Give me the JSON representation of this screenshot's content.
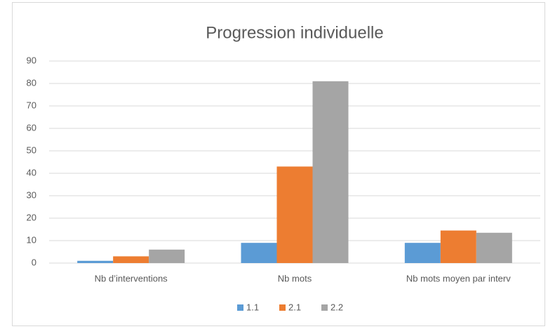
{
  "chart_data": {
    "type": "bar",
    "title": "Progression individuelle",
    "categories": [
      "Nb d’interventions",
      "Nb mots",
      "Nb mots moyen par interv"
    ],
    "series": [
      {
        "name": "1.1",
        "color": "#5b9bd5",
        "values": [
          1,
          9,
          9
        ]
      },
      {
        "name": "2.1",
        "color": "#ed7d31",
        "values": [
          3,
          43,
          14.5
        ]
      },
      {
        "name": "2.2",
        "color": "#a5a5a5",
        "values": [
          6,
          81,
          13.5
        ]
      }
    ],
    "ylim": [
      0,
      90
    ],
    "yticks": [
      0,
      10,
      20,
      30,
      40,
      50,
      60,
      70,
      80,
      90
    ],
    "grid": true,
    "legend": "bottom"
  }
}
